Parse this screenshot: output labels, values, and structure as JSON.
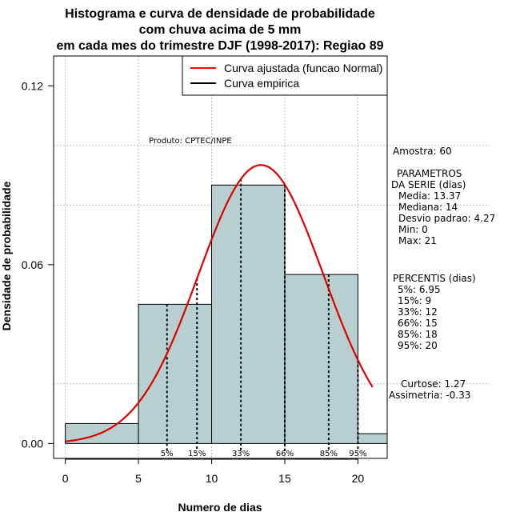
{
  "chart_data": {
    "type": "bar",
    "title_lines": [
      "Histograma e curva de densidade de probabilidade",
      "com chuva acima de 5 mm",
      "em cada mes do trimestre DJF (1998-2017): Regiao 89"
    ],
    "xlabel": "Numero de dias",
    "ylabel": "Densidade de probabilidade",
    "xlim": [
      -0.8,
      22
    ],
    "ylim": [
      -0.005,
      0.13
    ],
    "x_ticks": [
      0,
      5,
      10,
      15,
      20
    ],
    "x_tick_labels": [
      "0",
      "5",
      "10",
      "15",
      "20"
    ],
    "y_ticks": [
      0.0,
      0.06,
      0.12
    ],
    "y_tick_labels": [
      "0.00",
      "0.06",
      "0.12"
    ],
    "grid": true,
    "grid_x": [
      0,
      5,
      10,
      15,
      20
    ],
    "grid_y": [
      0.02,
      0.08,
      0.1
    ],
    "bins": [
      {
        "x0": 0,
        "x1": 5,
        "density": 0.0067
      },
      {
        "x0": 5,
        "x1": 10,
        "density": 0.0467
      },
      {
        "x0": 10,
        "x1": 15,
        "density": 0.0867
      },
      {
        "x0": 15,
        "x1": 20,
        "density": 0.0567
      },
      {
        "x0": 20,
        "x1": 22,
        "density": 0.0033
      }
    ],
    "normal_fit": {
      "mean": 13.37,
      "sd": 4.27,
      "x_from": 0,
      "x_to": 21
    },
    "percentile_lines": [
      {
        "x": 6.95,
        "label": "5%"
      },
      {
        "x": 9,
        "label": "15%"
      },
      {
        "x": 12,
        "label": "33%"
      },
      {
        "x": 15,
        "label": "66%"
      },
      {
        "x": 18,
        "label": "85%"
      },
      {
        "x": 20,
        "label": "95%"
      }
    ],
    "legend": {
      "position": "top-right",
      "entries": [
        {
          "label": "Curva ajustada (funcao Normal)",
          "color": "#ff0000"
        },
        {
          "label": "Curva empirica",
          "color": "#000000"
        }
      ]
    },
    "annotation": "Produto: CPTEC/INPE",
    "colors": {
      "bar_fill": "#b7d0cf",
      "bar_edge": "#000000",
      "fit_line": "#dd0000",
      "grid": "#bdbdbd"
    }
  },
  "stats": {
    "amostra": "Amostra: 60",
    "params": [
      "PARAMETROS",
      "DA SERIE (dias)",
      "Media: 13.37",
      "Mediana: 14",
      "Desvio padrao: 4.27",
      "Min: 0",
      "Max: 21"
    ],
    "percentis": [
      "PERCENTIS (dias)",
      "5%: 6.95",
      "15%: 9",
      "33%: 12",
      "66%: 15",
      "85%: 18",
      "95%: 20"
    ],
    "curtose": "Curtose: 1.27",
    "assimetria": "Assimetria: -0.33"
  }
}
